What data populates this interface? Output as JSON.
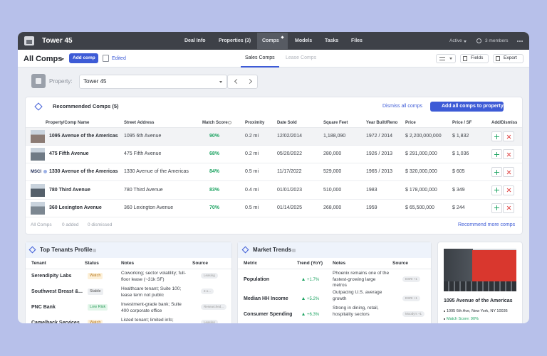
{
  "header": {
    "title": "Tower 45",
    "nav": [
      "Deal Info",
      "Properties (3)",
      "Comps",
      "Models",
      "Tasks",
      "Files"
    ],
    "status": "Active",
    "members": "3 members"
  },
  "toolbar": {
    "title": "All Comps",
    "add_button": "Add comp",
    "edited": "Edited",
    "tabs": [
      "Sales Comps",
      "Lease Comps"
    ],
    "buttons": [
      "Fields",
      "Export"
    ]
  },
  "property": {
    "label": "Property:",
    "value": "Tower 45"
  },
  "comps": {
    "title": "Recommended Comps (5)",
    "dismiss_all": "Dismiss all comps",
    "add_all": "Add all comps to property",
    "logo_text": "MSCI",
    "columns": [
      "Property/Comp Name",
      "Street Address",
      "Match Score",
      "Proximity",
      "Date Sold",
      "Square Feet",
      "Year Built/Reno",
      "Price",
      "Price / SF",
      "Add/Dismiss"
    ],
    "rows": [
      [
        "1095 Avenue of the Americas",
        "1095 6th Avenue",
        "90%",
        "0.2 mi",
        "12/02/2014",
        "1,188,090",
        "1972 / 2014",
        "$ 2,200,000,000",
        "$ 1,832"
      ],
      [
        "475 Fifth Avenue",
        "475 Fifth Avenue",
        "68%",
        "0.2 mi",
        "05/20/2022",
        "280,000",
        "1926 / 2013",
        "$ 291,000,000",
        "$ 1,036"
      ],
      [
        "1330 Avenue of the Americas",
        "1330 Avenue of the Americas",
        "84%",
        "0.5 mi",
        "11/17/2022",
        "529,000",
        "1965 / 2013",
        "$ 320,000,000",
        "$ 605"
      ],
      [
        "780 Third Avenue",
        "780 Third Avenue",
        "83%",
        "0.4 mi",
        "01/01/2023",
        "510,000",
        "1983",
        "$ 178,000,000",
        "$ 349"
      ],
      [
        "360 Lexington Avenue",
        "360 Lexington Avenue",
        "70%",
        "0.5 mi",
        "01/14/2025",
        "268,000",
        "1959",
        "$ 65,500,000",
        "$ 244"
      ]
    ],
    "footer": [
      "All Comps",
      "0 added",
      "0 dismissed"
    ],
    "recommend_more": "Recommend more comps"
  },
  "tenants": {
    "title": "Top Tenants Profile",
    "columns": [
      "Tenant",
      "Status",
      "Notes",
      "Source"
    ],
    "rows": [
      [
        "Serendipity Labs",
        "Watch",
        "Coworking; sector volatility; full-floor lease (~31k SF)",
        "Leasing"
      ],
      [
        "Southwest Breast &...",
        "Stable",
        "Healthcare tenant; Suite 100; lease term not public",
        "2.1..."
      ],
      [
        "PNC Bank",
        "Low Risk",
        "Investment-grade bank; Suite 400 corporate office",
        "Researched..."
      ],
      [
        "Camelback Services",
        "Watch",
        "Listed tenant; limited info;",
        "Leasing"
      ]
    ]
  },
  "market": {
    "title": "Market Trends",
    "columns": [
      "Metric",
      "Trend (YoY)",
      "Notes",
      "Source"
    ],
    "rows": [
      [
        "Population",
        "+1.7%",
        "Phoenix remains one of the fastest-growing large metros",
        "ESRI +1"
      ],
      [
        "Median HH Income",
        "+5.2%",
        "Outpacing U.S. average growth",
        "ESRI +1"
      ],
      [
        "Consumer Spending",
        "+6.3%",
        "Strong in dining, retail, hospitality sectors",
        "Moody's +1"
      ]
    ]
  },
  "card": {
    "name": "1095 Avenue of the Americas",
    "address": "1095 6th Ave, New York, NY 10036",
    "match": "Match Score: 90%"
  }
}
